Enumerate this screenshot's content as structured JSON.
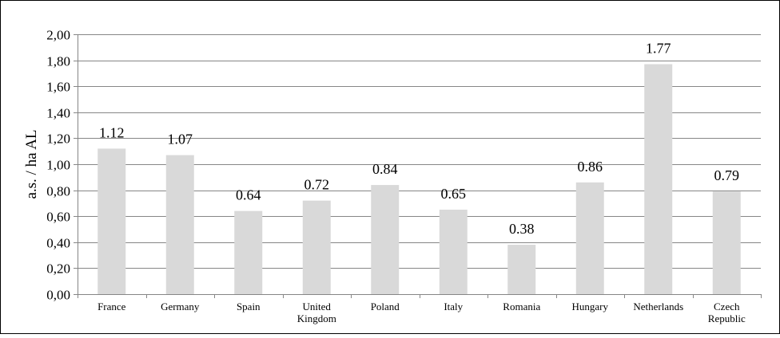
{
  "chart_data": {
    "type": "bar",
    "title": "",
    "xlabel": "",
    "ylabel": "a.s. / ha AL",
    "ylim": [
      0,
      2
    ],
    "ytick_step": 0.2,
    "ytick_labels": [
      "0,00",
      "0,20",
      "0,40",
      "0,60",
      "0,80",
      "1,00",
      "1,20",
      "1,40",
      "1,60",
      "1,80",
      "2,00"
    ],
    "grid": true,
    "legend": "none",
    "bar_color": "#d9d9d9",
    "categories": [
      [
        "France"
      ],
      [
        "Germany"
      ],
      [
        "Spain"
      ],
      [
        "United",
        "Kingdom"
      ],
      [
        "Poland"
      ],
      [
        "Italy"
      ],
      [
        "Romania"
      ],
      [
        "Hungary"
      ],
      [
        "Netherlands"
      ],
      [
        "Czech",
        "Republic"
      ]
    ],
    "values": [
      1.12,
      1.07,
      0.64,
      0.72,
      0.84,
      0.65,
      0.38,
      0.86,
      1.77,
      0.79
    ],
    "value_labels": [
      "1.12",
      "1.07",
      "0.64",
      "0.72",
      "0.84",
      "0.65",
      "0.38",
      "0.86",
      "1.77",
      "0.79"
    ]
  }
}
